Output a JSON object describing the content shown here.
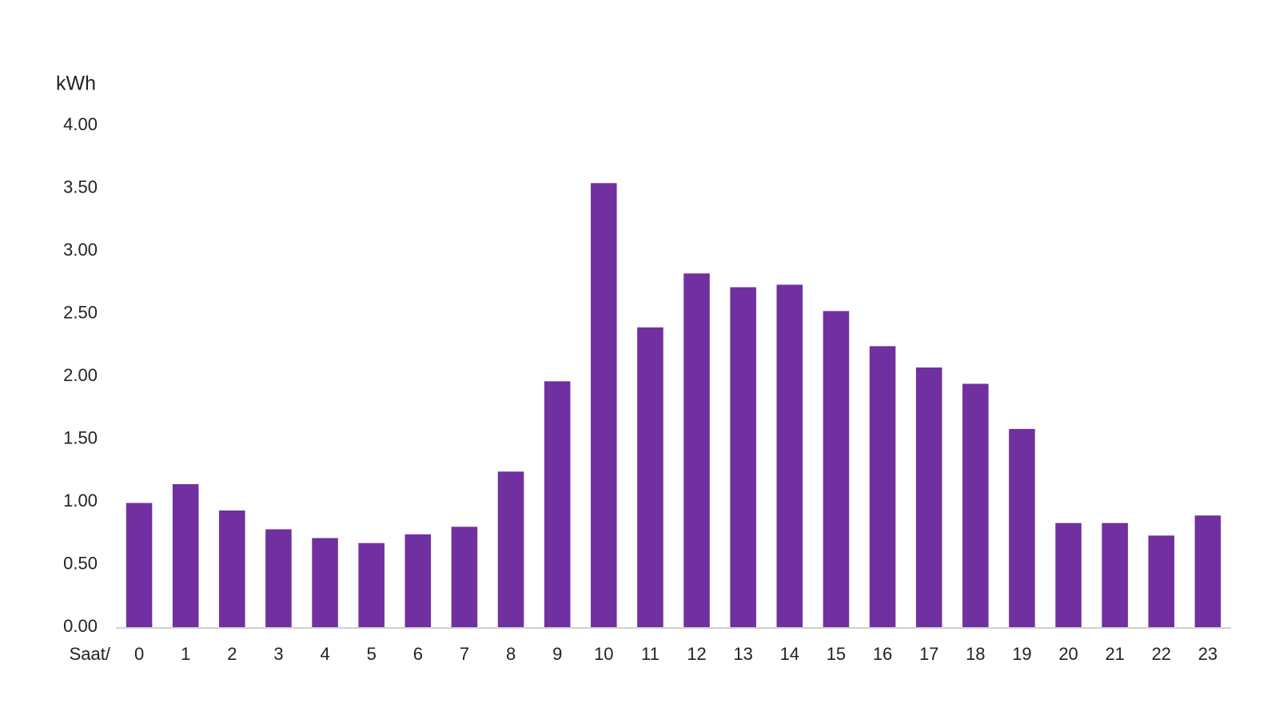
{
  "chart_data": {
    "type": "bar",
    "y_label": "kWh",
    "x_label": "Saat/",
    "categories": [
      "0",
      "1",
      "2",
      "3",
      "4",
      "5",
      "6",
      "7",
      "8",
      "9",
      "10",
      "11",
      "12",
      "13",
      "14",
      "15",
      "16",
      "17",
      "18",
      "19",
      "20",
      "21",
      "22",
      "23"
    ],
    "values": [
      0.99,
      1.14,
      0.93,
      0.78,
      0.71,
      0.67,
      0.74,
      0.8,
      1.24,
      1.96,
      3.54,
      2.39,
      2.82,
      2.71,
      2.73,
      2.52,
      2.24,
      2.07,
      1.94,
      1.58,
      0.83,
      0.83,
      0.73,
      0.89
    ],
    "color": "#7030a0",
    "ylim": [
      0,
      4
    ],
    "yticks": [
      {
        "value": 0,
        "label": "0.00"
      },
      {
        "value": 0.5,
        "label": "0.50"
      },
      {
        "value": 1,
        "label": "1.00"
      },
      {
        "value": 1.5,
        "label": "1.50"
      },
      {
        "value": 2,
        "label": "2.00"
      },
      {
        "value": 2.5,
        "label": "2.50"
      },
      {
        "value": 3,
        "label": "3.00"
      },
      {
        "value": 3.5,
        "label": "3.50"
      },
      {
        "value": 4,
        "label": "4.00"
      }
    ],
    "grid": false
  }
}
